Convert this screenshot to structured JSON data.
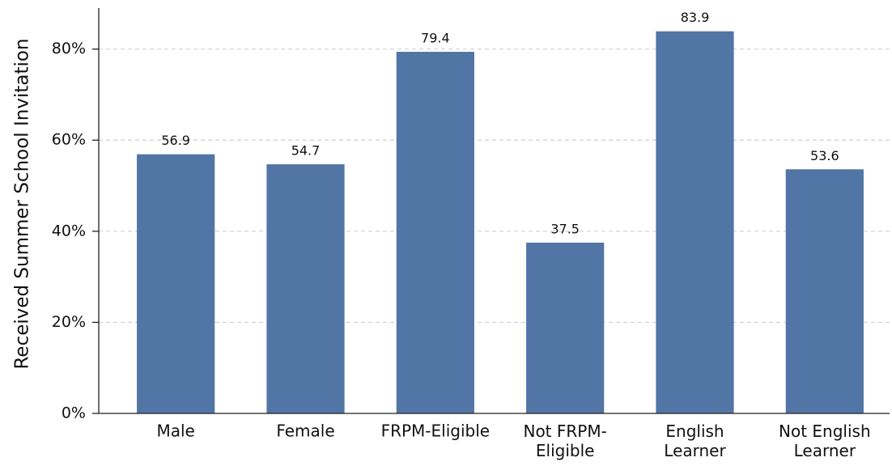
{
  "chart_data": {
    "type": "bar",
    "y_label": "Received Summer School Invitation",
    "categories": [
      "Male",
      "Female",
      "FRPM-Eligible",
      "Not FRPM-\nEligible",
      "English\nLearner",
      "Not English\nLearner"
    ],
    "values": [
      56.9,
      54.7,
      79.4,
      37.5,
      83.9,
      53.6
    ],
    "color": "#5175a5",
    "ylim": [
      0,
      89
    ],
    "yticks": [
      {
        "value": 0,
        "label": "0%"
      },
      {
        "value": 20,
        "label": "20%"
      },
      {
        "value": 40,
        "label": "40%"
      },
      {
        "value": 60,
        "label": "60%"
      },
      {
        "value": 80,
        "label": "80%"
      }
    ],
    "grid": true
  }
}
